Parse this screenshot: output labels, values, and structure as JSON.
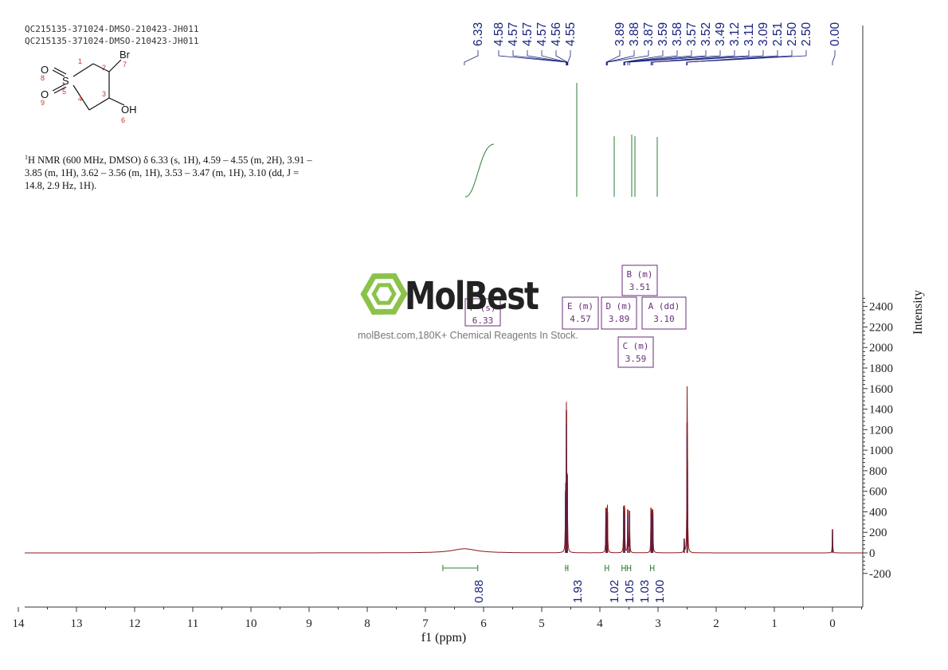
{
  "header": {
    "line1": "QC215135-371024-DMSO-210423-JH011",
    "line2": "QC215135-371024-DMSO-210423-JH011"
  },
  "structure": {
    "atoms": [
      "O",
      "O",
      "S",
      "Br",
      "OH"
    ],
    "numbers": [
      "1",
      "2",
      "3",
      "4",
      "5",
      "6",
      "7",
      "8",
      "9"
    ]
  },
  "nmr_text": {
    "sup": "1",
    "body": "H NMR (600 MHz, DMSO) δ 6.33 (s, 1H), 4.59 – 4.55 (m, 2H), 3.91 – 3.85 (m, 1H), 3.62 – 3.56 (m, 1H), 3.53 – 3.47 (m, 1H), 3.10 (dd, J = 14.8, 2.9 Hz, 1H)."
  },
  "watermark": {
    "brand": "MolBest",
    "tagline": "molBest.com,180K+ Chemical Reagents In Stock."
  },
  "chart_data": {
    "type": "line",
    "xlabel": "f1 (ppm)",
    "ylabel": "Intensity",
    "xlim": [
      14.5,
      -0.5
    ],
    "ylim": [
      -250,
      2550
    ],
    "x_ticks": [
      14,
      13,
      12,
      11,
      10,
      9,
      8,
      7,
      6,
      5,
      4,
      3,
      2,
      1,
      0
    ],
    "y_ticks": [
      2400,
      2200,
      2000,
      1800,
      1600,
      1400,
      1200,
      1000,
      800,
      600,
      400,
      200,
      0,
      -200
    ],
    "peak_labels": [
      "6.33",
      "4.58",
      "4.57",
      "4.57",
      "4.57",
      "4.56",
      "4.55",
      "3.89",
      "3.88",
      "3.87",
      "3.59",
      "3.58",
      "3.57",
      "3.52",
      "3.49",
      "3.12",
      "3.11",
      "3.09",
      "2.51",
      "2.50",
      "2.50",
      "0.00"
    ],
    "peaks": [
      {
        "ppm": 6.33,
        "height": 40,
        "width": 0.25
      },
      {
        "ppm": 4.575,
        "height": 1390,
        "width": 0.004
      },
      {
        "ppm": 4.56,
        "height": 760,
        "width": 0.004
      },
      {
        "ppm": 4.59,
        "height": 600,
        "width": 0.004
      },
      {
        "ppm": 3.895,
        "height": 440,
        "width": 0.004
      },
      {
        "ppm": 3.88,
        "height": 430,
        "width": 0.004
      },
      {
        "ppm": 3.87,
        "height": 400,
        "width": 0.004
      },
      {
        "ppm": 3.59,
        "height": 450,
        "width": 0.004
      },
      {
        "ppm": 3.575,
        "height": 430,
        "width": 0.004
      },
      {
        "ppm": 3.52,
        "height": 420,
        "width": 0.004
      },
      {
        "ppm": 3.49,
        "height": 410,
        "width": 0.004
      },
      {
        "ppm": 3.12,
        "height": 440,
        "width": 0.004
      },
      {
        "ppm": 3.1,
        "height": 420,
        "width": 0.004
      },
      {
        "ppm": 3.09,
        "height": 390,
        "width": 0.004
      },
      {
        "ppm": 2.55,
        "height": 140,
        "width": 0.004
      },
      {
        "ppm": 2.5,
        "height": 1270,
        "width": 0.004
      },
      {
        "ppm": 2.495,
        "height": 900,
        "width": 0.004
      },
      {
        "ppm": 0.0,
        "height": 230,
        "width": 0.004
      }
    ],
    "integrals": [
      {
        "value": "0.88",
        "from": 6.7,
        "to": 6.1
      },
      {
        "value": "1.93",
        "from": 4.59,
        "to": 4.55
      },
      {
        "value": "1.02",
        "from": 3.91,
        "to": 3.85
      },
      {
        "value": "1.05",
        "from": 3.62,
        "to": 3.56
      },
      {
        "value": "1.03",
        "from": 3.53,
        "to": 3.47
      },
      {
        "value": "1.00",
        "from": 3.13,
        "to": 3.07
      }
    ],
    "multiplets": [
      {
        "id": "F",
        "type": "s",
        "ppm": "6.33"
      },
      {
        "id": "E",
        "type": "m",
        "ppm": "4.57"
      },
      {
        "id": "D",
        "type": "m",
        "ppm": "3.89"
      },
      {
        "id": "B",
        "type": "m",
        "ppm": "3.51"
      },
      {
        "id": "C",
        "type": "m",
        "ppm": "3.59"
      },
      {
        "id": "A",
        "type": "dd",
        "ppm": "3.10"
      }
    ],
    "colors": {
      "spectrum": "#8b1a1a",
      "spectrum_core": "#1a237e",
      "integral": "#2e7d32",
      "peak_label": "#1a237e",
      "multiplet_box": "#6a2e7a"
    }
  }
}
